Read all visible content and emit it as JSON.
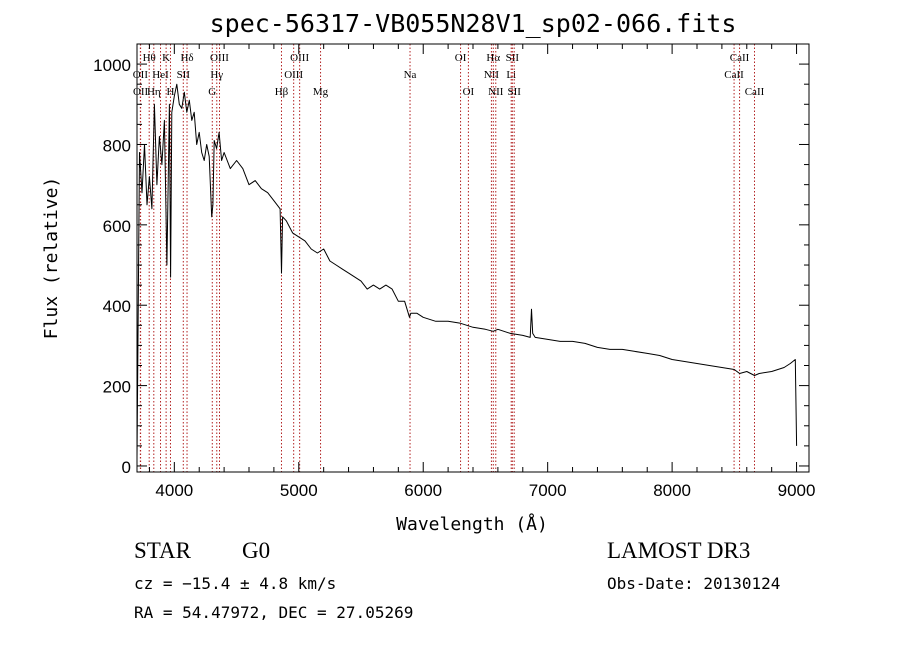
{
  "chart_data": {
    "type": "line",
    "title": "spec-56317-VB055N28V1_sp02-066.fits",
    "xlabel": "Wavelength (Å)",
    "ylabel": "Flux (relative)",
    "xlim": [
      3700,
      9100
    ],
    "ylim": [
      -15,
      1050
    ],
    "xticks": [
      4000,
      5000,
      6000,
      7000,
      8000,
      9000
    ],
    "yticks": [
      0,
      200,
      400,
      600,
      800,
      1000
    ],
    "series": [
      {
        "name": "flux",
        "color": "#000000",
        "x": [
          3700,
          3720,
          3740,
          3760,
          3780,
          3800,
          3820,
          3840,
          3860,
          3880,
          3900,
          3920,
          3940,
          3960,
          3970,
          3980,
          4000,
          4020,
          4040,
          4060,
          4080,
          4100,
          4120,
          4140,
          4160,
          4180,
          4200,
          4220,
          4240,
          4260,
          4280,
          4300,
          4310,
          4320,
          4340,
          4360,
          4380,
          4400,
          4450,
          4500,
          4550,
          4600,
          4650,
          4700,
          4750,
          4800,
          4850,
          4861,
          4870,
          4900,
          4950,
          5000,
          5050,
          5100,
          5150,
          5200,
          5250,
          5300,
          5350,
          5400,
          5450,
          5500,
          5550,
          5600,
          5650,
          5700,
          5750,
          5800,
          5850,
          5890,
          5900,
          5950,
          6000,
          6100,
          6200,
          6300,
          6400,
          6500,
          6562,
          6600,
          6700,
          6800,
          6860,
          6870,
          6880,
          6900,
          7000,
          7100,
          7200,
          7300,
          7400,
          7500,
          7600,
          7700,
          7800,
          7900,
          8000,
          8100,
          8200,
          8300,
          8400,
          8500,
          8542,
          8600,
          8662,
          8700,
          8800,
          8900,
          8950,
          8990,
          9000
        ],
        "values": [
          20,
          780,
          680,
          800,
          650,
          720,
          640,
          900,
          700,
          820,
          750,
          860,
          500,
          900,
          470,
          880,
          920,
          950,
          900,
          890,
          930,
          880,
          910,
          860,
          880,
          800,
          830,
          780,
          760,
          800,
          770,
          620,
          650,
          810,
          790,
          830,
          760,
          780,
          740,
          760,
          740,
          700,
          710,
          690,
          680,
          660,
          640,
          480,
          620,
          610,
          580,
          570,
          560,
          540,
          530,
          540,
          510,
          500,
          490,
          480,
          470,
          460,
          440,
          450,
          440,
          450,
          440,
          410,
          410,
          370,
          380,
          380,
          370,
          360,
          360,
          355,
          345,
          340,
          335,
          340,
          330,
          325,
          320,
          390,
          330,
          320,
          315,
          310,
          310,
          305,
          295,
          290,
          290,
          285,
          280,
          275,
          265,
          260,
          255,
          250,
          245,
          240,
          230,
          235,
          225,
          230,
          235,
          245,
          255,
          265,
          50
        ]
      }
    ],
    "line_markers": [
      {
        "name": "OII",
        "x": 3727,
        "row": 2
      },
      {
        "name": "OII",
        "x": 3729,
        "row": 3
      },
      {
        "name": "Hθ",
        "x": 3798,
        "row": 1
      },
      {
        "name": "Hη",
        "x": 3835,
        "row": 3
      },
      {
        "name": "HeI",
        "x": 3889,
        "row": 2
      },
      {
        "name": "K",
        "x": 3934,
        "row": 1
      },
      {
        "name": "H",
        "x": 3969,
        "row": 3
      },
      {
        "name": "SII",
        "x": 4072,
        "row": 2
      },
      {
        "name": "Hδ",
        "x": 4102,
        "row": 1
      },
      {
        "name": "G",
        "x": 4305,
        "row": 3
      },
      {
        "name": "Hγ",
        "x": 4341,
        "row": 2
      },
      {
        "name": "OIII",
        "x": 4363,
        "row": 1
      },
      {
        "name": "Hβ",
        "x": 4861,
        "row": 3
      },
      {
        "name": "OIII",
        "x": 4959,
        "row": 2
      },
      {
        "name": "OIII",
        "x": 5007,
        "row": 1
      },
      {
        "name": "Mg",
        "x": 5175,
        "row": 3
      },
      {
        "name": "Na",
        "x": 5894,
        "row": 2
      },
      {
        "name": "OI",
        "x": 6300,
        "row": 1
      },
      {
        "name": "OI",
        "x": 6363,
        "row": 3
      },
      {
        "name": "NII",
        "x": 6548,
        "row": 2
      },
      {
        "name": "Hα",
        "x": 6563,
        "row": 1
      },
      {
        "name": "NII",
        "x": 6583,
        "row": 3
      },
      {
        "name": "Li",
        "x": 6707,
        "row": 2
      },
      {
        "name": "SII",
        "x": 6716,
        "row": 1
      },
      {
        "name": "SII",
        "x": 6731,
        "row": 3
      },
      {
        "name": "CaII",
        "x": 8498,
        "row": 2
      },
      {
        "name": "CaII",
        "x": 8542,
        "row": 1
      },
      {
        "name": "CaII",
        "x": 8662,
        "row": 3
      }
    ],
    "marker_color": "#b22222",
    "grid": false
  },
  "info": {
    "object_class": "STAR",
    "subclass": "G0",
    "survey": "LAMOST DR3",
    "redshift_text": "cz = −15.4 ± 4.8 km/s",
    "obs_date_text": "Obs-Date: 20130124",
    "coords_text": "RA =  54.47972, DEC =  27.05269"
  }
}
